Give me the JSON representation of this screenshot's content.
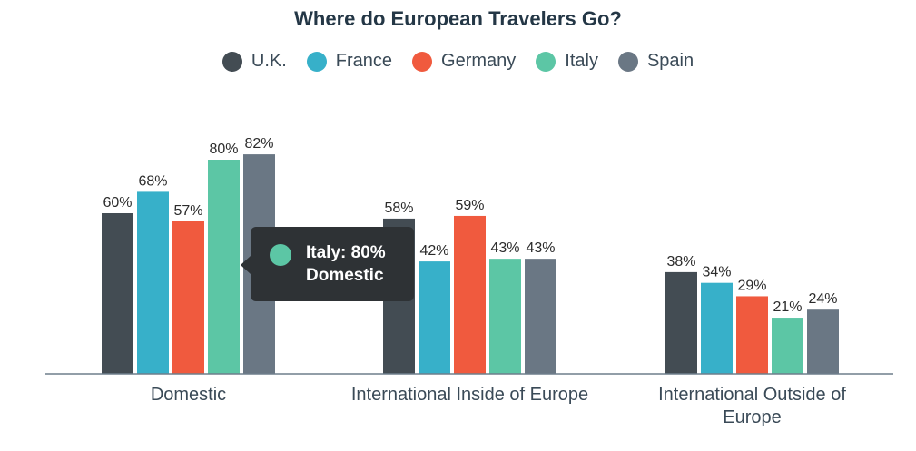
{
  "chart_data": {
    "type": "bar",
    "title": "Where do European Travelers Go?",
    "categories": [
      "Domestic",
      "International Inside of Europe",
      "International Outside of Europe"
    ],
    "series": [
      {
        "name": "U.K.",
        "color": "#434c53",
        "values": [
          60,
          58,
          38
        ]
      },
      {
        "name": "France",
        "color": "#37b0c9",
        "values": [
          68,
          42,
          34
        ]
      },
      {
        "name": "Germany",
        "color": "#f05a3e",
        "values": [
          57,
          59,
          29
        ]
      },
      {
        "name": "Italy",
        "color": "#5cc6a5",
        "values": [
          80,
          43,
          21
        ]
      },
      {
        "name": "Spain",
        "color": "#6a7784",
        "values": [
          82,
          43,
          24
        ]
      }
    ],
    "value_suffix": "%",
    "ylim": [
      0,
      100
    ],
    "grid": false,
    "legend": "top-center"
  },
  "tooltip": {
    "series_value": "Italy: 80%",
    "category": "Domestic",
    "color": "#5cc6a5"
  }
}
